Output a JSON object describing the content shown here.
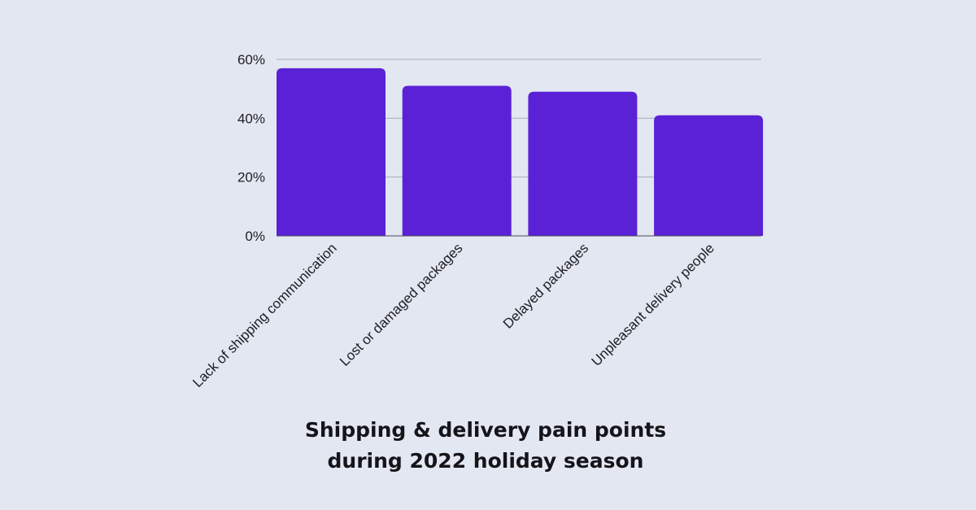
{
  "colors": {
    "background": "#e3e7f1",
    "bar": "#5b21d6",
    "grid": "#a9adb8",
    "axis": "#4a4a52",
    "text": "#1d1d22"
  },
  "chart_data": {
    "type": "bar",
    "title_lines": [
      "Shipping & delivery pain points",
      "during 2022 holiday season"
    ],
    "categories": [
      "Lack of shipping communication",
      "Lost or damaged packages",
      "Delayed packages",
      "Unpleasant delivery people"
    ],
    "values": [
      57,
      51,
      49,
      41
    ],
    "ylim": [
      0,
      60
    ],
    "yticks": [
      0,
      20,
      40,
      60
    ],
    "ytick_labels": [
      "0%",
      "20%",
      "40%",
      "60%"
    ],
    "grid": true,
    "legend": "none",
    "xlabel": "",
    "ylabel": ""
  }
}
